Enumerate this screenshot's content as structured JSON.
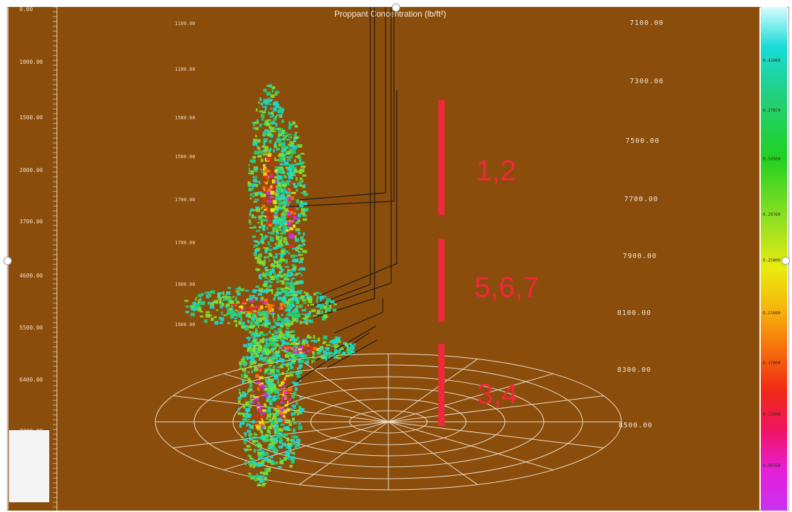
{
  "title": "Proppant Concentration (lb/ft²)",
  "colors": {
    "background": "#8b4d0b",
    "stage_marker": "#f0283c",
    "annotation_lines": "#1a1a1a",
    "polar_grid": "#ffffff"
  },
  "left_ruler_labels": [
    "0.00",
    "1000.00",
    "1500.00",
    "2000.00",
    "3700.00",
    "4600.00",
    "5500.00",
    "6400.00",
    "7300.00"
  ],
  "inner_ruler_labels": [
    "1100.00",
    "1100.00",
    "1500.00",
    "1500.00",
    "1700.00",
    "1700.00",
    "1900.00",
    "1900.00"
  ],
  "right_depth_labels": [
    "7100.00",
    "7300.00",
    "7500.00",
    "7700.00",
    "7900.00",
    "8100.00",
    "8300.00",
    "8500.00"
  ],
  "stage_groups": [
    {
      "label": "1,2"
    },
    {
      "label": "5,6,7"
    },
    {
      "label": "3,4"
    }
  ],
  "colorbar_labels": [
    "0.42000",
    "0.37870",
    "0.33500",
    "0.29760",
    "0.25800",
    "0.21680",
    "0.17600",
    "0.13560",
    "0.09760"
  ]
}
